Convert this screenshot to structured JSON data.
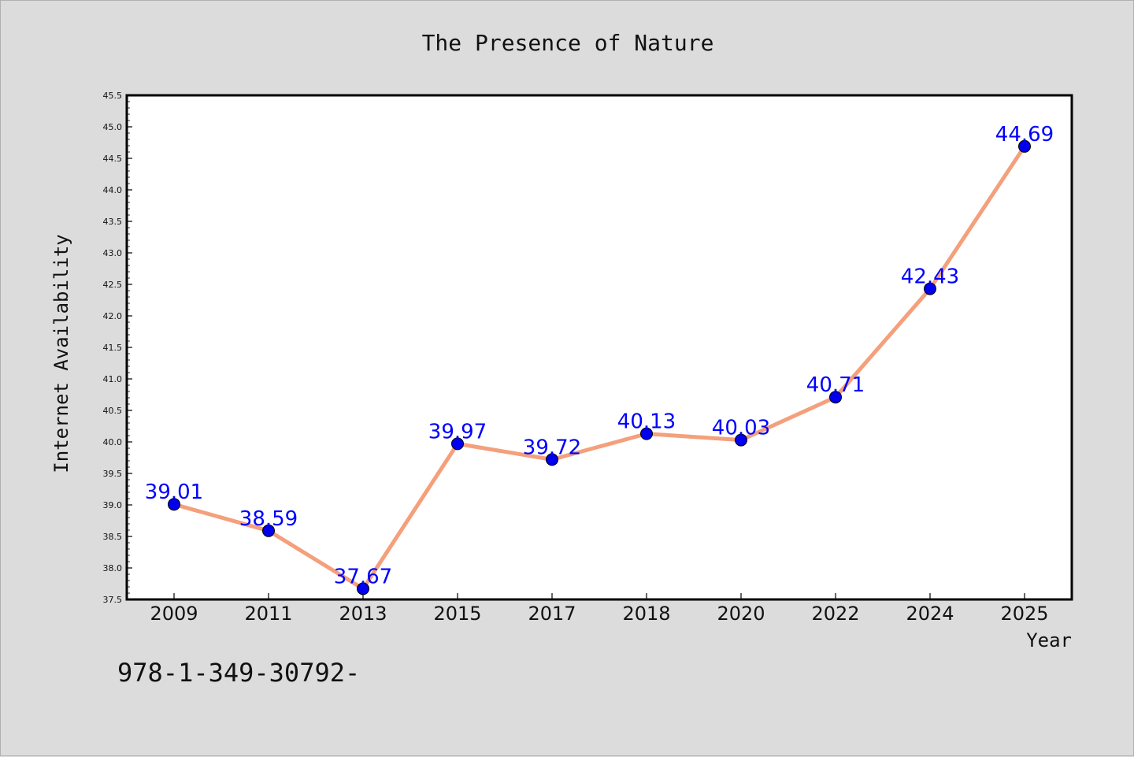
{
  "chart_data": {
    "type": "line",
    "title": "The Presence of Nature",
    "xlabel": "Year",
    "ylabel": "Internet Availability",
    "categories": [
      "2009",
      "2011",
      "2013",
      "2015",
      "2017",
      "2018",
      "2020",
      "2022",
      "2024",
      "2025"
    ],
    "series": [
      {
        "values": [
          39.01,
          38.59,
          37.67,
          39.97,
          39.72,
          40.13,
          40.03,
          40.71,
          42.43,
          44.69
        ],
        "data_labels": [
          "39.01",
          "38.59",
          "37.67",
          "39.97",
          "39.72",
          "40.13",
          "40.03",
          "40.71",
          "42.43",
          "44.69"
        ]
      }
    ],
    "ylim": [
      37.5,
      45.5
    ],
    "yticks": [
      "37.5",
      "38.0",
      "38.5",
      "39.0",
      "39.5",
      "40.0",
      "40.5",
      "41.0",
      "41.5",
      "42.0",
      "42.5",
      "43.0",
      "43.5",
      "44.0",
      "44.5",
      "45.0",
      "45.5"
    ],
    "grid": false,
    "colors": {
      "line": "#f4a07c",
      "marker": "#0000ee",
      "label": "#0000ff"
    }
  },
  "footnote": "978-1-349-30792-"
}
